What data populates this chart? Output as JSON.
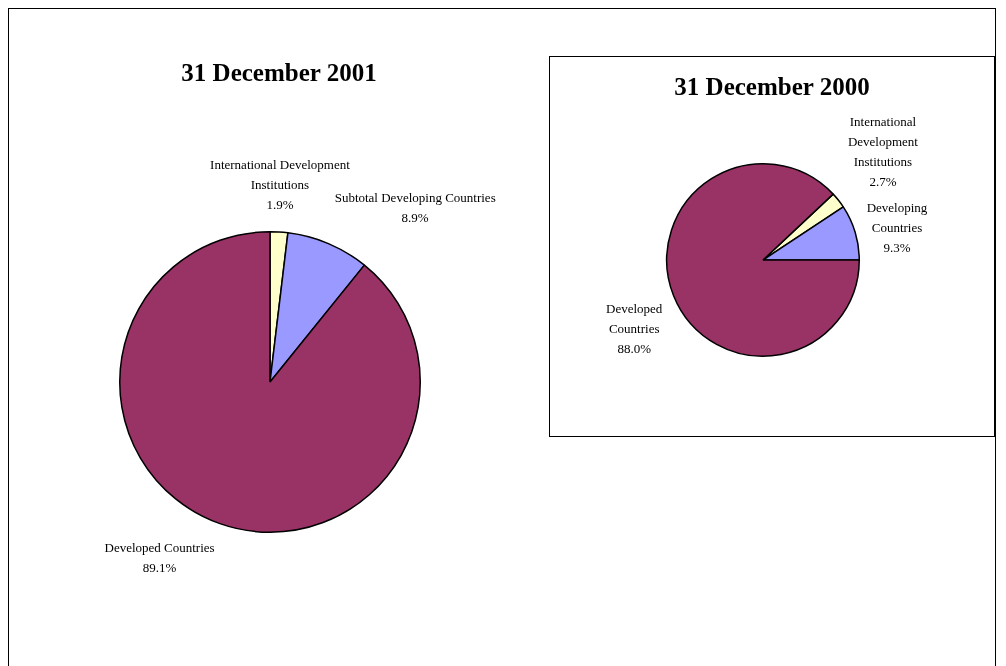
{
  "chart_data": [
    {
      "type": "pie",
      "title": "31 December 2001",
      "categories": [
        "International Development Institutions",
        "Subtotal Developing Countries",
        "Developed Countries"
      ],
      "values": [
        1.9,
        8.9,
        89.1
      ],
      "colors": [
        "#ffffcc",
        "#9999ff",
        "#993366"
      ],
      "value_labels": [
        "1.9%",
        "8.9%",
        "89.1%"
      ]
    },
    {
      "type": "pie",
      "title": "31 December 2000",
      "categories": [
        "International Development Institutions",
        "Developing Countries",
        "Developed Countries"
      ],
      "values": [
        2.7,
        9.3,
        88.0
      ],
      "colors": [
        "#ffffcc",
        "#9999ff",
        "#993366"
      ],
      "value_labels": [
        "2.7%",
        "9.3%",
        "88.0%"
      ]
    }
  ]
}
